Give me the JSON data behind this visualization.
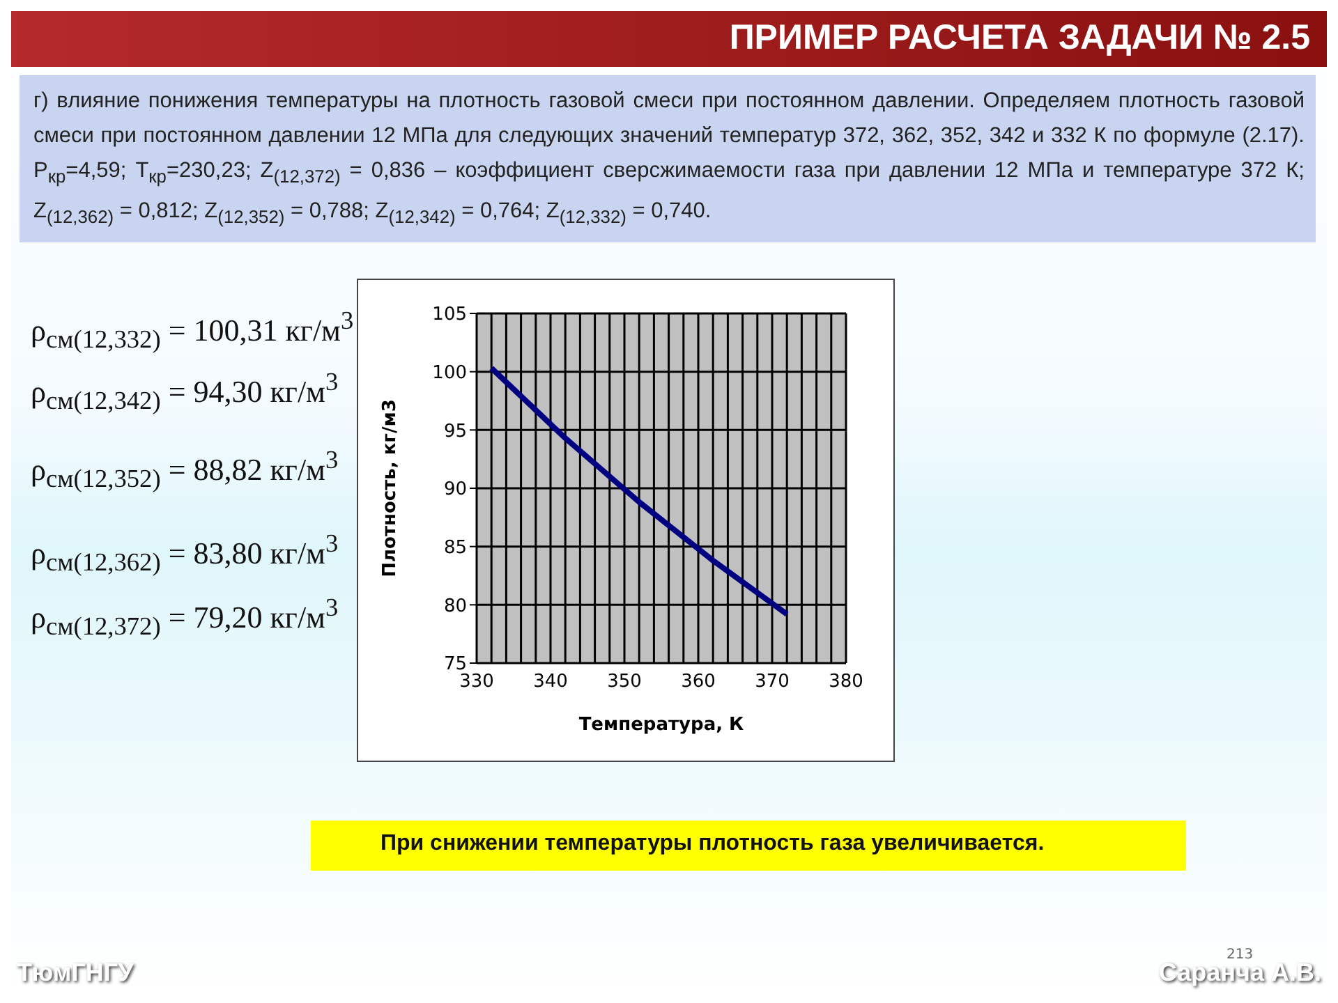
{
  "chart_data": {
    "type": "line",
    "title": "ПРИМЕР РАСЧЕТА ЗАДАЧИ № 2.5",
    "subtitle": "г) влияние понижения температуры на плотность газовой смеси при постоянном давлении. Определяем плотность газовой смеси при постоянном давлении 12 МПа для следующих значений температур 372, 362, 352, 342 и 332 К по формуле (2.17). P$_{кр}$=4,59; T$_{кр}$=230,23; Z$_{(12,372)}$ = 0,836 – коэффициент сверсжимаемости газа при давлении 12 МПа и температуре 372 К; Z$_{(12,362)}$ = 0,812; Z$_{(12,352)}$ = 0,788; Z$_{(12,342)}$ = 0,764; Z$_{(12,332)}$ = 0,740.",
    "xlabel": "Температура, К",
    "ylabel": "Плотность, кг/м3",
    "x": [
      332,
      342,
      352,
      362,
      372
    ],
    "series": [
      {
        "color": "#000080",
        "values": [
          100.31,
          94.3,
          88.82,
          83.8,
          79.2
        ]
      }
    ],
    "xlim": [
      330,
      380
    ],
    "xticks": [
      330,
      {
        "value": 332,
        "label": null
      },
      {
        "value": 334,
        "label": null
      },
      {
        "value": 336,
        "label": null
      },
      {
        "value": 338,
        "label": null
      },
      340,
      {
        "value": 342,
        "label": null
      },
      {
        "value": 344,
        "label": null
      },
      {
        "value": 346,
        "label": null
      },
      {
        "value": 348,
        "label": null
      },
      350,
      {
        "value": 352,
        "label": null
      },
      {
        "value": 354,
        "label": null
      },
      {
        "value": 356,
        "label": null
      },
      {
        "value": 358,
        "label": null
      },
      360,
      {
        "value": 362,
        "label": null
      },
      {
        "value": 364,
        "label": null
      },
      {
        "value": 366,
        "label": null
      },
      {
        "value": 368,
        "label": null
      },
      370,
      {
        "value": 372,
        "label": null
      },
      {
        "value": 374,
        "label": null
      },
      {
        "value": 376,
        "label": null
      },
      {
        "value": 378,
        "label": null
      },
      380
    ],
    "ylim": [
      75,
      105
    ],
    "yticks": [
      75,
      80,
      85,
      90,
      95,
      100,
      105
    ],
    "grid": true,
    "marker": "none",
    "line_style": "solid",
    "annotations": [
      "ρ$_{см(12,332)}$ = 100,31 кг/м$^{3}$",
      "ρ$_{см(12,342)}$ = 94,30 кг/м$^{3}$",
      "ρ$_{см(12,352)}$ = 88,82 кг/м$^{3}$",
      "ρ$_{см(12,362)}$ = 83,80 кг/м$^{3}$",
      "ρ$_{см(12,372)}$ = 79,20 кг/м$^{3}$",
      "При снижении температуры плотность газа увеличивается.",
      "ТюмГНГУ",
      "Саранча А.В.",
      "213"
    ]
  }
}
